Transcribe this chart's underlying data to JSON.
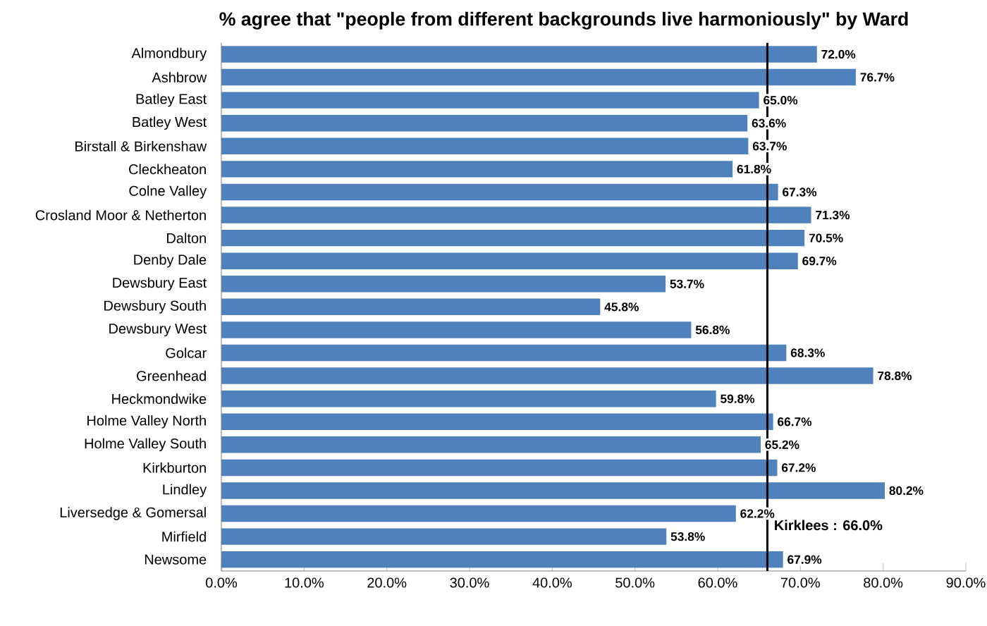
{
  "chart_data": {
    "type": "bar",
    "orientation": "horizontal",
    "title": "% agree that \"people from different backgrounds live harmoniously\" by Ward",
    "categories": [
      "Almondbury",
      "Ashbrow",
      "Batley East",
      "Batley West",
      "Birstall & Birkenshaw",
      "Cleckheaton",
      "Colne Valley",
      "Crosland Moor & Netherton",
      "Dalton",
      "Denby Dale",
      "Dewsbury East",
      "Dewsbury South",
      "Dewsbury West",
      "Golcar",
      "Greenhead",
      "Heckmondwike",
      "Holme Valley North",
      "Holme Valley South",
      "Kirkburton",
      "Lindley",
      "Liversedge & Gomersal",
      "Mirfield",
      "Newsome"
    ],
    "values": [
      72.0,
      76.7,
      65.0,
      63.6,
      63.7,
      61.8,
      67.3,
      71.3,
      70.5,
      69.7,
      53.7,
      45.8,
      56.8,
      68.3,
      78.8,
      59.8,
      66.7,
      65.2,
      67.2,
      80.2,
      62.2,
      53.8,
      67.9
    ],
    "value_labels": [
      "72.0%",
      "76.7%",
      "65.0%",
      "63.6%",
      "63.7%",
      "61.8%",
      "67.3%",
      "71.3%",
      "70.5%",
      "69.7%",
      "53.7%",
      "45.8%",
      "56.8%",
      "68.3%",
      "78.8%",
      "59.8%",
      "66.7%",
      "65.2%",
      "67.2%",
      "80.2%",
      "62.2%",
      "53.8%",
      "67.9%"
    ],
    "color": "#4f81bd",
    "xlim": [
      0,
      90
    ],
    "xticks": [
      {
        "value": 0,
        "label": "0.0%"
      },
      {
        "value": 10,
        "label": "10.0%"
      },
      {
        "value": 20,
        "label": "20.0%"
      },
      {
        "value": 30,
        "label": "30.0%"
      },
      {
        "value": 40,
        "label": "40.0%"
      },
      {
        "value": 50,
        "label": "50.0%"
      },
      {
        "value": 60,
        "label": "60.0%"
      },
      {
        "value": 70,
        "label": "70.0%"
      },
      {
        "value": 80,
        "label": "80.0%"
      },
      {
        "value": 90,
        "label": "90.0%"
      }
    ],
    "ref_lines": [
      {
        "axis": "x",
        "value": 66.0,
        "label": "Kirklees : 66.0%",
        "color": "#000000"
      }
    ]
  }
}
